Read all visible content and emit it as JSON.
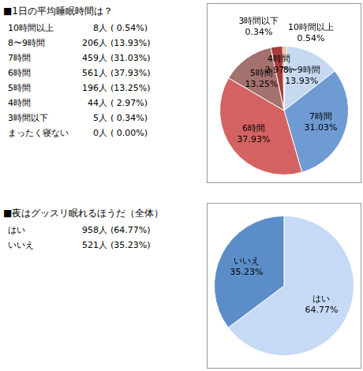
{
  "chart_data": [
    {
      "type": "pie",
      "title": "■1日の平均睡眠時間は？",
      "categories": [
        "10時間以上",
        "8〜9時間",
        "7時間",
        "6時間",
        "5時間",
        "4時間",
        "3時間以下",
        "まったく寝ない"
      ],
      "values": [
        0.54,
        13.93,
        31.03,
        37.93,
        13.25,
        2.97,
        0.34,
        0.0
      ],
      "value_labels": [
        "0.54%",
        "13.93%",
        "31.03%",
        "37.93%",
        "13.25%",
        "2.97%",
        "0.34%",
        null
      ],
      "counts": [
        8,
        206,
        459,
        561,
        196,
        44,
        5,
        0
      ],
      "count_unit": "人",
      "list_value_labels": [
        "( 0.54%)",
        "(13.93%)",
        "(31.03%)",
        "(37.93%)",
        "(13.25%)",
        "( 2.97%)",
        "( 0.34%)",
        "( 0.00%)"
      ],
      "colors": [
        "#f0a030",
        "#c6d9f1",
        "#6f9bd3",
        "#d46262",
        "#a3716e",
        "#a83c3c",
        "#c83a30",
        "#888888"
      ],
      "data_labels": true
    },
    {
      "type": "pie",
      "title": "■夜はグッスリ眠れるほうだ（全体）",
      "categories": [
        "はい",
        "いいえ"
      ],
      "values": [
        64.77,
        35.23
      ],
      "value_labels": [
        "64.77%",
        "35.23%"
      ],
      "counts": [
        958,
        521
      ],
      "count_unit": "人",
      "list_value_labels": [
        "(64.77%)",
        "(35.23%)"
      ],
      "colors": [
        "#c6daf5",
        "#5b8dc8"
      ],
      "data_labels": true
    }
  ]
}
